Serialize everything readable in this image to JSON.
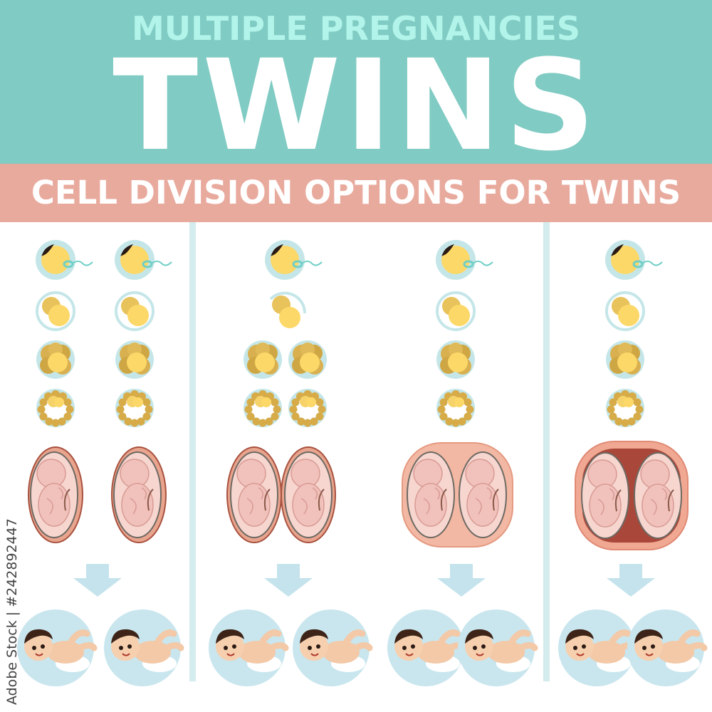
{
  "header": {
    "subtitle": "MULTIPLE PREGNANCIES",
    "title": "TWINS"
  },
  "band": {
    "text": "CELL DIVISION OPTIONS FOR TWINS"
  },
  "watermark": "Adobe Stock | #242892447",
  "colors": {
    "header_bg": "#80cbc3",
    "subtitle": "#b2f4ea",
    "band_bg": "#e9aa9e",
    "divider": "#d4eced",
    "cell_yellow": "#fcd868",
    "cell_gold": "#d9b050",
    "membrane": "#c5e6e8",
    "placenta": "#e9a48e",
    "arrow": "#c4e3ec",
    "baby_bg": "#c9e6ee"
  },
  "icons": [
    "zygote-icon",
    "two-cell-icon",
    "morula-icon",
    "blastocyst-icon",
    "fetus-sac-icon",
    "down-arrow-icon",
    "baby-icon"
  ]
}
